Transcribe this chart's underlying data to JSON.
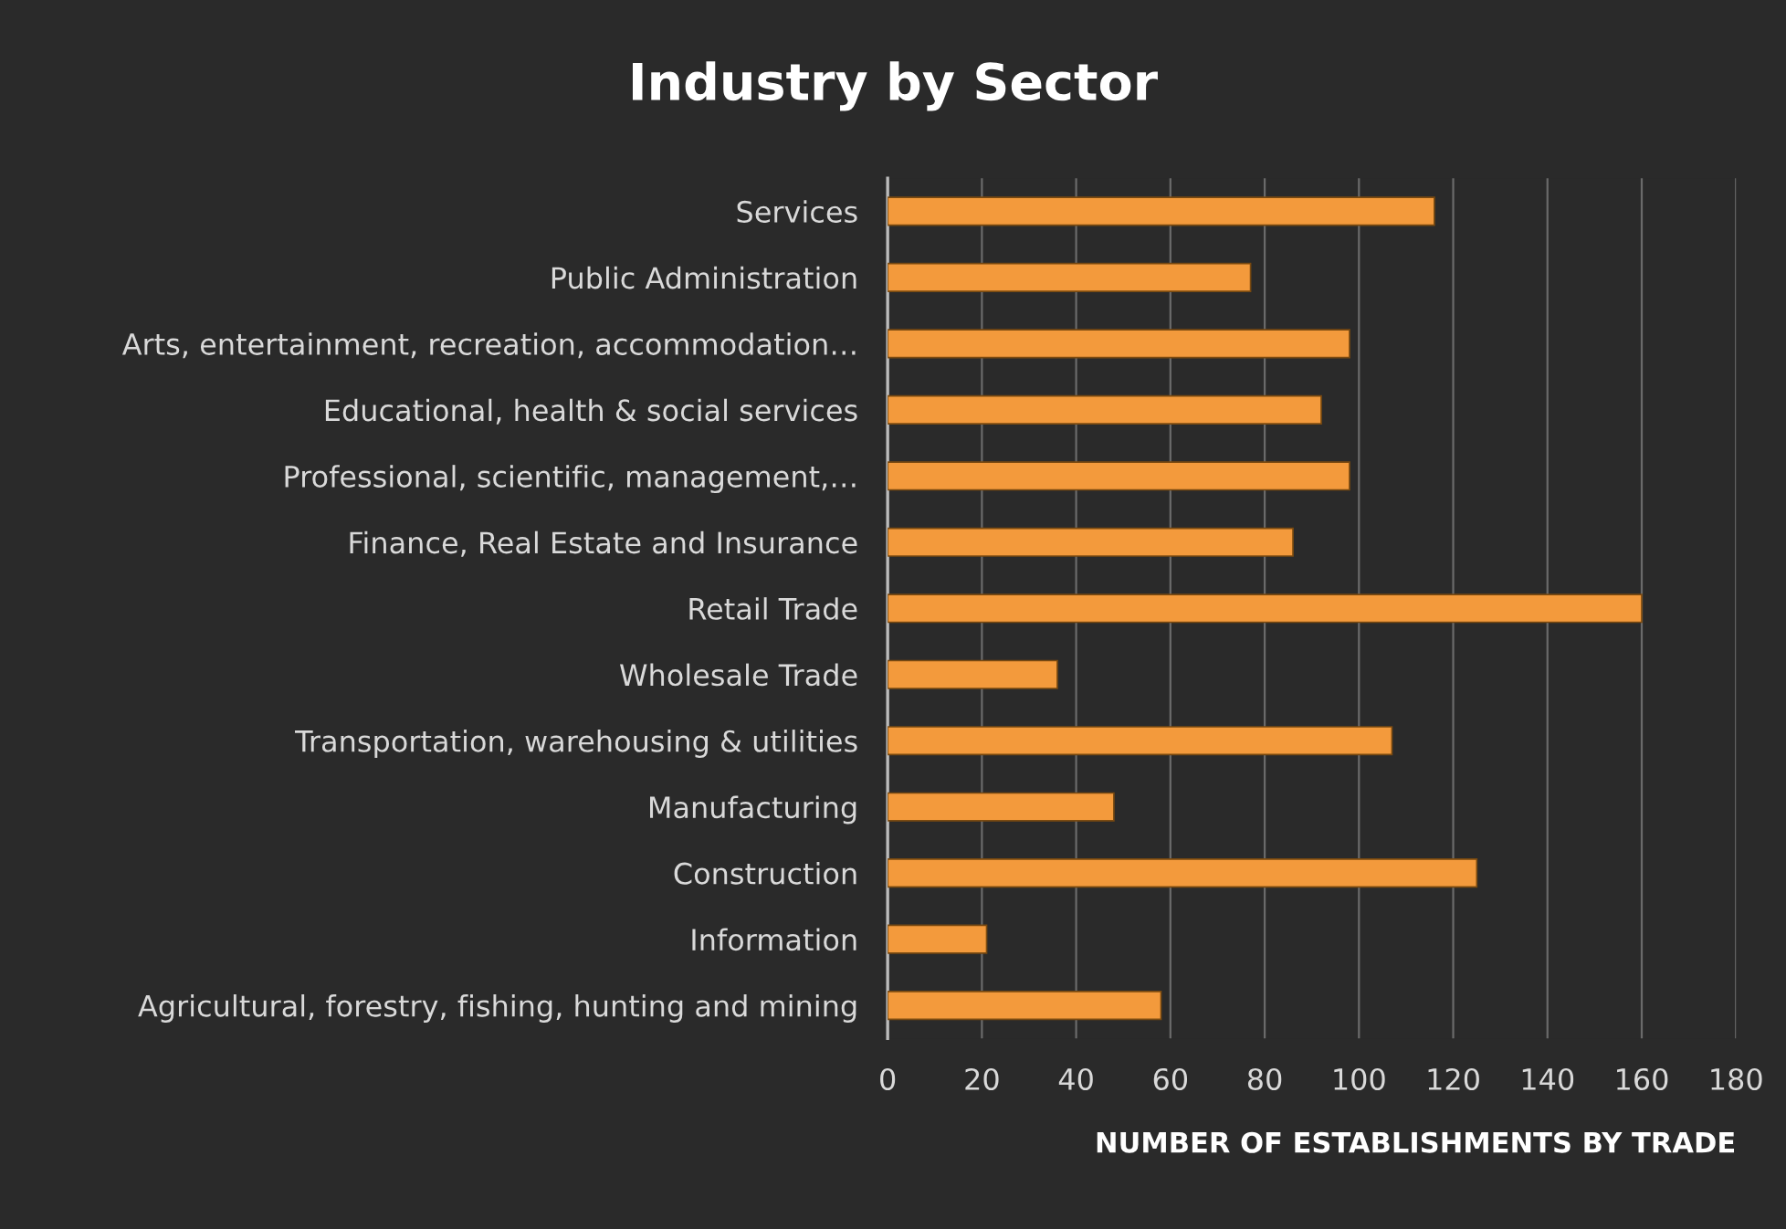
{
  "chart_data": {
    "type": "bar",
    "orientation": "horizontal",
    "title": "Industry by Sector",
    "xlabel": "NUMBER OF ESTABLISHMENTS BY TRADE",
    "categories": [
      "Services",
      "Public Administration",
      "Arts, entertainment, recreation, accommodation…",
      "Educational, health & social services",
      "Professional, scientific, management,…",
      "Finance, Real Estate and Insurance",
      "Retail Trade",
      "Wholesale Trade",
      "Transportation, warehousing & utilities",
      "Manufacturing",
      "Construction",
      "Information",
      "Agricultural, forestry, fishing, hunting and mining"
    ],
    "values": [
      116,
      77,
      98,
      92,
      98,
      86,
      160,
      36,
      107,
      48,
      125,
      21,
      58
    ],
    "color": "#f39a3c",
    "xlim": [
      0,
      180
    ],
    "xticks": [
      0,
      20,
      40,
      60,
      80,
      100,
      120,
      140,
      160,
      180
    ],
    "grid": "x",
    "legend": false
  }
}
